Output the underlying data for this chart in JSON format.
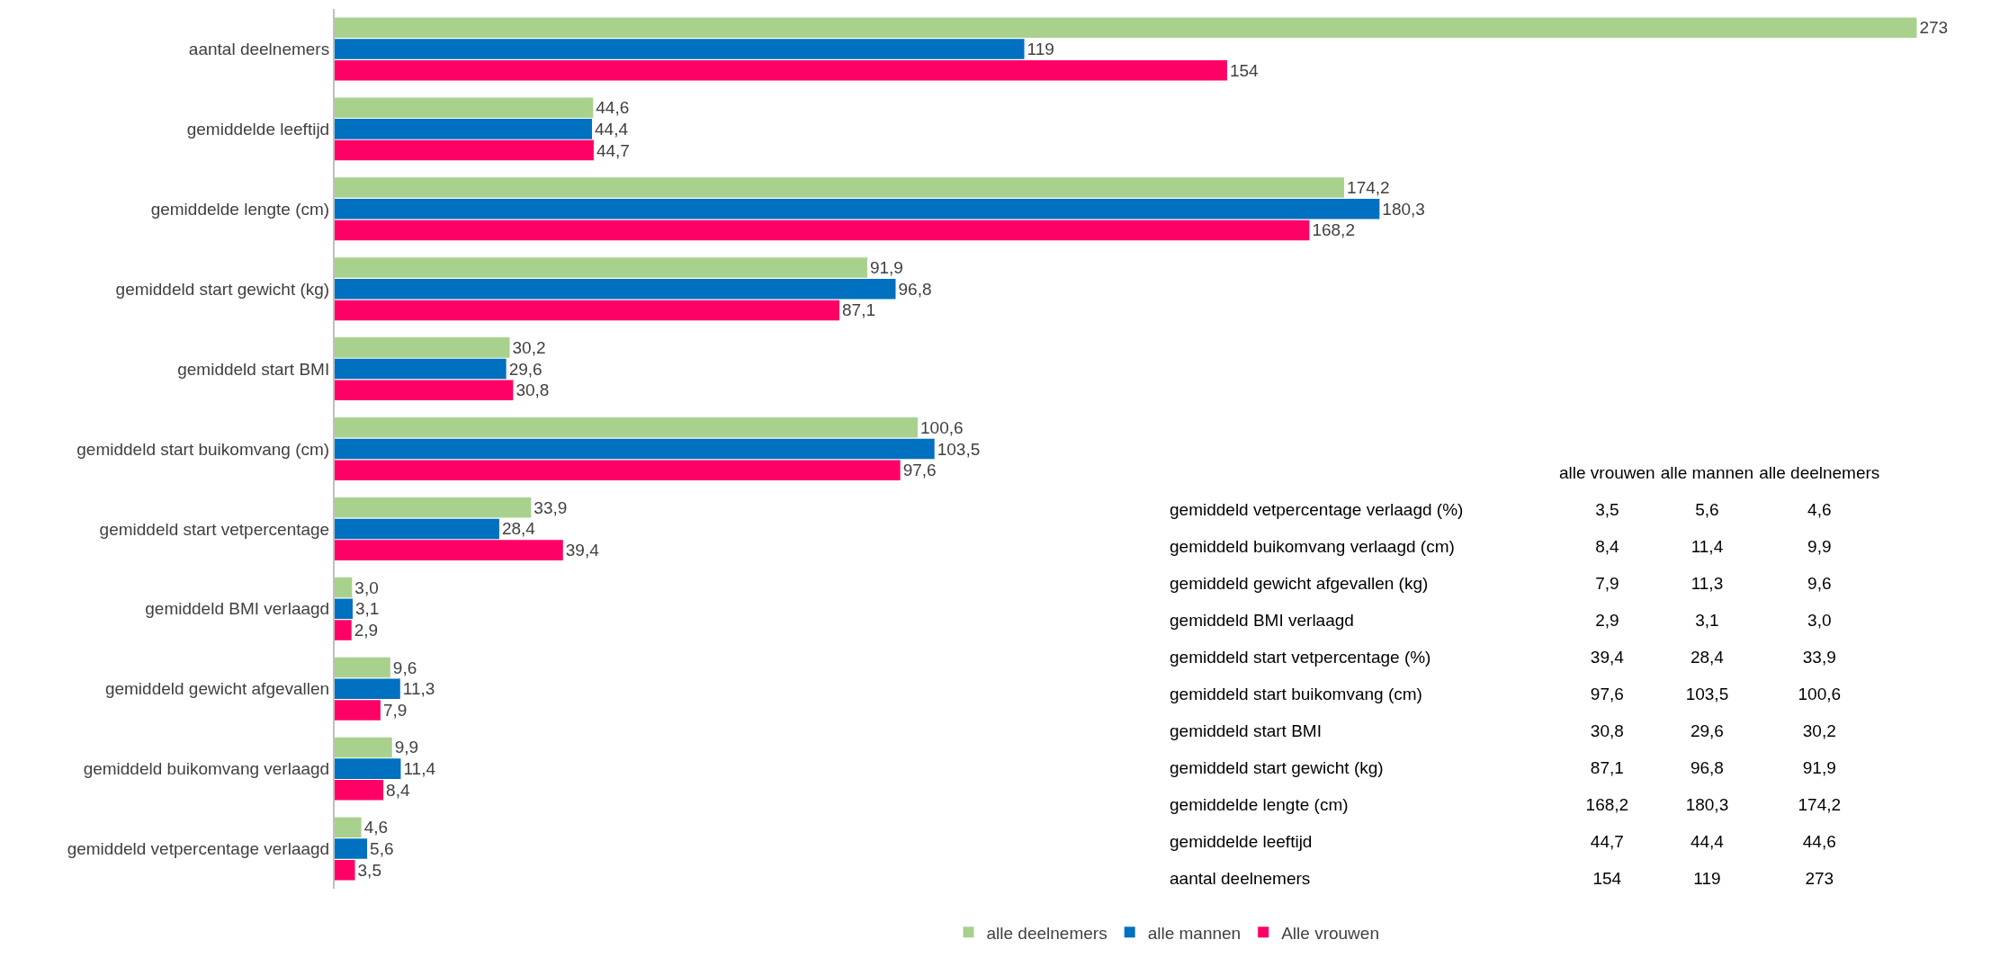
{
  "chart_data": [
    {
      "type": "bar",
      "orientation": "horizontal",
      "categories": [
        "aantal deelnemers",
        "gemiddelde leeftijd",
        "gemiddelde lengte (cm)",
        "gemiddeld start gewicht (kg)",
        "gemiddeld start BMI",
        "gemiddeld start buikomvang (cm)",
        "gemiddeld start vetpercentage",
        "gemiddeld BMI verlaagd",
        "gemiddeld gewicht afgevallen",
        "gemiddeld buikomvang verlaagd",
        "gemiddeld vetpercentage verlaagd"
      ],
      "series": [
        {
          "name": "alle deelnemers",
          "color": "#a9d18e",
          "values": [
            273,
            44.6,
            174.2,
            91.9,
            30.2,
            100.6,
            33.9,
            3.0,
            9.6,
            9.9,
            4.6
          ],
          "value_labels": [
            "273",
            "44,6",
            "174,2",
            "91,9",
            "30,2",
            "100,6",
            "33,9",
            "3,0",
            "9,6",
            "9,9",
            "4,6"
          ]
        },
        {
          "name": "alle mannen",
          "color": "#0070c0",
          "values": [
            119,
            44.4,
            180.3,
            96.8,
            29.6,
            103.5,
            28.4,
            3.1,
            11.3,
            11.4,
            5.6
          ],
          "value_labels": [
            "119",
            "44,4",
            "180,3",
            "96,8",
            "29,6",
            "103,5",
            "28,4",
            "3,1",
            "11,3",
            "11,4",
            "5,6"
          ]
        },
        {
          "name": "Alle vrouwen",
          "color": "#ff0066",
          "values": [
            154,
            44.7,
            168.2,
            87.1,
            30.8,
            97.6,
            39.4,
            2.9,
            7.9,
            8.4,
            3.5
          ],
          "value_labels": [
            "154",
            "44,7",
            "168,2",
            "87,1",
            "30,8",
            "97,6",
            "39,4",
            "2,9",
            "7,9",
            "8,4",
            "3,5"
          ]
        }
      ],
      "tick_labels": "y",
      "legend": "bottom"
    },
    {
      "type": "other",
      "categories": [
        "alle vrouwen",
        "alle mannen",
        "alle deelnemers"
      ],
      "y_categories": [
        "gemiddeld vetpercentage verlaagd (%)",
        "gemiddeld buikomvang verlaagd (cm)",
        "gemiddeld gewicht afgevallen (kg)",
        "gemiddeld BMI verlaagd",
        "gemiddeld start vetpercentage (%)",
        "gemiddeld start buikomvang (cm)",
        "gemiddeld start BMI",
        "gemiddeld start gewicht (kg)",
        "gemiddelde lengte (cm)",
        "gemiddelde leeftijd",
        "aantal deelnemers"
      ],
      "cell_labels": [
        [
          "3,5",
          "5,6",
          "4,6"
        ],
        [
          "8,4",
          "11,4",
          "9,9"
        ],
        [
          "7,9",
          "11,3",
          "9,6"
        ],
        [
          "2,9",
          "3,1",
          "3,0"
        ],
        [
          "39,4",
          "28,4",
          "33,9"
        ],
        [
          "97,6",
          "103,5",
          "100,6"
        ],
        [
          "30,8",
          "29,6",
          "30,2"
        ],
        [
          "87,1",
          "96,8",
          "91,9"
        ],
        [
          "168,2",
          "180,3",
          "174,2"
        ],
        [
          "44,7",
          "44,4",
          "44,6"
        ],
        [
          "154",
          "119",
          "273"
        ]
      ]
    }
  ]
}
